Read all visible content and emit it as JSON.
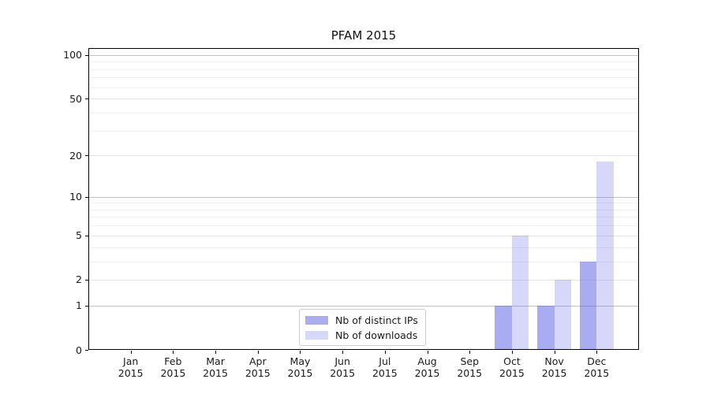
{
  "chart_data": {
    "type": "bar",
    "title": "PFAM 2015",
    "categories": [
      {
        "month": "Jan",
        "year": "2015"
      },
      {
        "month": "Feb",
        "year": "2015"
      },
      {
        "month": "Mar",
        "year": "2015"
      },
      {
        "month": "Apr",
        "year": "2015"
      },
      {
        "month": "May",
        "year": "2015"
      },
      {
        "month": "Jun",
        "year": "2015"
      },
      {
        "month": "Jul",
        "year": "2015"
      },
      {
        "month": "Aug",
        "year": "2015"
      },
      {
        "month": "Sep",
        "year": "2015"
      },
      {
        "month": "Oct",
        "year": "2015"
      },
      {
        "month": "Nov",
        "year": "2015"
      },
      {
        "month": "Dec",
        "year": "2015"
      }
    ],
    "series": [
      {
        "name": "Nb of distinct IPs",
        "color": "#555ae5",
        "alpha": 0.5,
        "values": [
          0,
          0,
          0,
          0,
          0,
          0,
          0,
          0,
          0,
          1,
          1,
          3
        ]
      },
      {
        "name": "Nb of downloads",
        "color": "#555ae5",
        "alpha": 0.235,
        "values": [
          0,
          0,
          0,
          0,
          0,
          0,
          0,
          0,
          0,
          5,
          2,
          18
        ]
      }
    ],
    "y_axis": {
      "scale": "log1p",
      "tick_values": [
        0,
        1,
        2,
        5,
        10,
        20,
        50,
        100
      ],
      "tick_labels": [
        "0",
        "1",
        "2",
        "5",
        "10",
        "20",
        "50",
        "100"
      ],
      "decade_gridlines": [
        1,
        10,
        100
      ],
      "labeled_gridlines": [
        2,
        5,
        20,
        50
      ],
      "minor_gridlines": [
        3,
        4,
        6,
        7,
        8,
        9,
        30,
        40,
        60,
        70,
        80,
        90
      ],
      "axis_max": 111.7
    },
    "legend": {
      "position": "lower center",
      "items": [
        "Nb of distinct IPs",
        "Nb of downloads"
      ]
    },
    "grid": true,
    "colors": {
      "grid_decade": "#c3c3c3",
      "grid_labeled": "#e4e4e4",
      "grid_minor": "#f0f0f0",
      "spine": "#000000",
      "text": "#1a1a1a",
      "background": "#ffffff"
    }
  }
}
